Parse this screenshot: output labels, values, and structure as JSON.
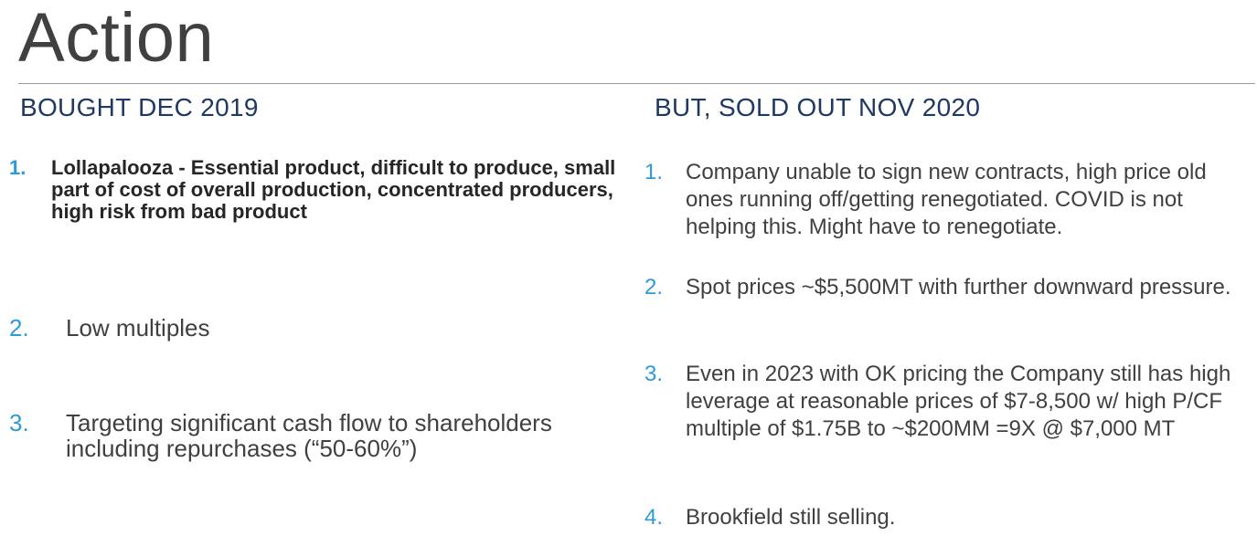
{
  "slide": {
    "title": "Action"
  },
  "left": {
    "heading": "BOUGHT DEC 2019",
    "items": [
      {
        "num": "1.",
        "text": "Lollapalooza - Essential product, difficult to produce, small part of cost of overall production, concentrated producers, high risk from bad product"
      },
      {
        "num": "2.",
        "text": "Low multiples"
      },
      {
        "num": "3.",
        "text": "Targeting significant cash flow to shareholders including repurchases (“50-60%”)"
      }
    ]
  },
  "right": {
    "heading": "BUT, SOLD OUT NOV 2020",
    "items": [
      {
        "num": "1.",
        "text": "Company unable to sign new contracts, high price old ones running off/getting renegotiated. COVID is not helping this. Might have to renegotiate."
      },
      {
        "num": "2.",
        "text": "Spot prices ~$5,500MT with further downward pressure."
      },
      {
        "num": "3.",
        "text": "Even in 2023 with OK pricing the Company still has high leverage at reasonable prices of $7-8,500 w/ high P/CF multiple of $1.75B to ~$200MM =9X @ $7,000 MT"
      },
      {
        "num": "4.",
        "text": "Brookfield still selling."
      }
    ]
  },
  "colors": {
    "heading": "#1f3864",
    "number_accent": "#2e9bd6",
    "body_text": "#404040",
    "rule": "#9a9a9a"
  }
}
